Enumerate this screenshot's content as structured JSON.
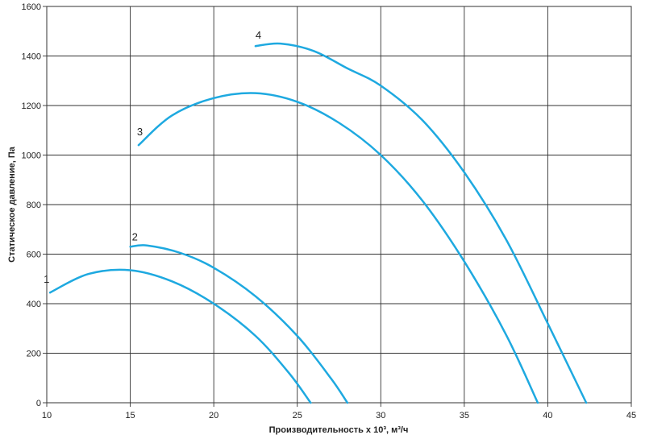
{
  "chart_data": {
    "type": "line",
    "title": "",
    "xlabel": "Производительность x 10³, м³/ч",
    "ylabel": "Статическое давление, Па",
    "xlim": [
      10,
      45
    ],
    "ylim": [
      0,
      1600
    ],
    "x_ticks": [
      "10",
      "15",
      "20",
      "25",
      "30",
      "35",
      "40",
      "45"
    ],
    "y_ticks": [
      "0",
      "200",
      "400",
      "600",
      "800",
      "1000",
      "1200",
      "1400",
      "1600"
    ],
    "grid": true,
    "line_color": "#1ea9e0",
    "series": [
      {
        "name": "1",
        "points": [
          [
            10.2,
            445
          ],
          [
            12.5,
            520
          ],
          [
            15.0,
            535
          ],
          [
            17.5,
            490
          ],
          [
            20.0,
            400
          ],
          [
            22.5,
            270
          ],
          [
            24.5,
            120
          ],
          [
            25.8,
            0
          ]
        ]
      },
      {
        "name": "2",
        "points": [
          [
            15.0,
            630
          ],
          [
            16.0,
            635
          ],
          [
            18.0,
            605
          ],
          [
            20.0,
            545
          ],
          [
            22.5,
            430
          ],
          [
            25.0,
            270
          ],
          [
            27.0,
            100
          ],
          [
            28.0,
            0
          ]
        ]
      },
      {
        "name": "3",
        "points": [
          [
            15.5,
            1040
          ],
          [
            17.5,
            1160
          ],
          [
            20.0,
            1230
          ],
          [
            22.5,
            1250
          ],
          [
            25.0,
            1215
          ],
          [
            27.5,
            1130
          ],
          [
            30.0,
            1000
          ],
          [
            32.5,
            815
          ],
          [
            35.0,
            570
          ],
          [
            37.5,
            275
          ],
          [
            39.4,
            0
          ]
        ]
      },
      {
        "name": "4",
        "points": [
          [
            22.5,
            1440
          ],
          [
            24.0,
            1450
          ],
          [
            26.0,
            1420
          ],
          [
            28.0,
            1350
          ],
          [
            30.0,
            1280
          ],
          [
            32.5,
            1140
          ],
          [
            35.0,
            930
          ],
          [
            37.5,
            660
          ],
          [
            40.0,
            320
          ],
          [
            42.3,
            0
          ]
        ]
      }
    ]
  }
}
